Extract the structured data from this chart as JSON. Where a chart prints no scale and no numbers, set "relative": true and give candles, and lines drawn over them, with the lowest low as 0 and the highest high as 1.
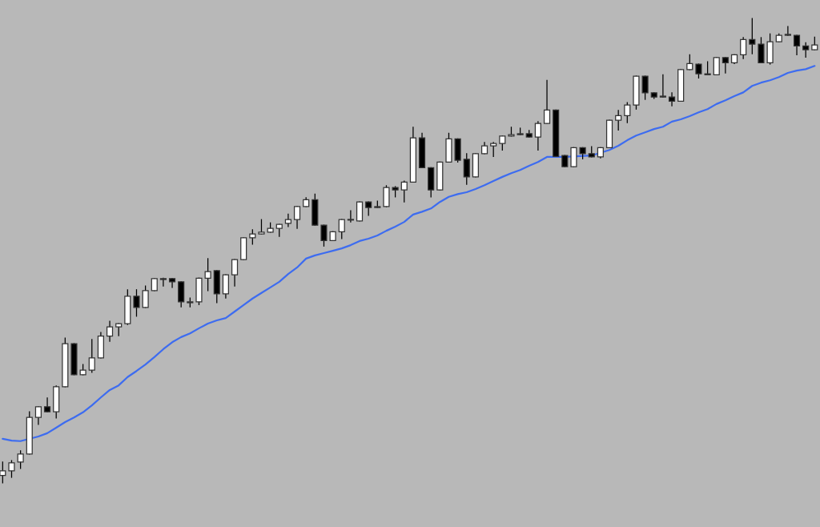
{
  "chart_data": {
    "type": "candlestick",
    "relative": true,
    "categories": [
      null,
      null,
      null,
      null,
      null,
      null,
      null,
      null,
      null,
      null,
      null,
      null,
      null,
      null,
      null,
      null,
      null,
      null,
      null,
      null,
      null,
      null,
      null,
      null,
      null,
      null,
      null,
      null,
      null,
      null,
      null,
      null,
      null,
      null,
      null,
      null,
      null,
      null,
      null,
      null,
      null,
      null,
      null,
      null,
      null,
      null,
      null,
      null,
      null,
      null,
      null,
      null,
      null,
      null,
      null,
      null,
      null,
      null,
      null,
      null,
      null,
      null,
      null,
      null,
      null,
      null,
      null,
      null,
      null,
      null,
      null,
      null,
      null,
      null,
      null,
      null,
      null,
      null,
      null,
      null,
      null,
      null,
      null,
      null,
      null,
      null,
      null,
      null,
      null,
      null,
      null,
      null
    ],
    "series": [
      {
        "type": "line",
        "color": "#3d6cf0",
        "values": [
          0.095,
          0.091,
          0.09,
          null,
          0.1,
          0.107,
          0.119,
          0.131,
          0.141,
          0.152,
          0.167,
          0.184,
          0.2,
          0.21,
          0.228,
          0.241,
          0.255,
          0.271,
          0.288,
          0.303,
          0.314,
          0.322,
          0.333,
          0.343,
          0.35,
          0.355,
          0.369,
          0.383,
          0.397,
          0.409,
          0.421,
          0.433,
          0.45,
          0.464,
          0.483,
          0.49,
          0.495,
          0.5,
          0.505,
          0.512,
          0.521,
          0.526,
          0.533,
          0.543,
          0.552,
          0.562,
          0.578,
          0.584,
          0.591,
          0.605,
          0.616,
          0.622,
          0.626,
          0.633,
          0.641,
          0.65,
          0.659,
          0.667,
          0.674,
          0.683,
          0.691,
          0.702,
          0.702,
          0.702,
          null,
          null,
          0.705,
          null,
          0.717,
          0.726,
          0.738,
          0.748,
          0.755,
          0.762,
          0.767,
          0.778,
          0.783,
          0.79,
          0.798,
          0.805,
          0.816,
          0.824,
          0.833,
          0.841,
          0.855,
          0.862,
          0.867,
          0.874,
          0.883,
          0.888,
          0.891,
          0.898
        ]
      },
      {
        "type": "candlestick",
        "ohlc": [
          [
            0.016,
            0.045,
            0.0,
            0.026
          ],
          [
            0.026,
            0.048,
            0.012,
            0.043
          ],
          [
            0.045,
            0.069,
            0.031,
            0.062
          ],
          [
            0.062,
            0.153,
            0.062,
            0.141
          ],
          [
            0.141,
            0.164,
            0.126,
            0.164
          ],
          [
            0.164,
            0.183,
            0.153,
            0.153
          ],
          [
            0.153,
            0.209,
            0.14,
            0.207
          ],
          [
            0.207,
            0.312,
            0.207,
            0.3
          ],
          [
            0.3,
            0.3,
            0.233,
            0.233
          ],
          [
            0.233,
            0.255,
            0.233,
            0.243
          ],
          [
            0.243,
            0.309,
            0.238,
            0.269
          ],
          [
            0.269,
            0.324,
            0.269,
            0.316
          ],
          [
            0.316,
            0.348,
            0.305,
            0.336
          ],
          [
            0.336,
            0.343,
            0.317,
            0.343
          ],
          [
            0.343,
            0.416,
            0.341,
            0.402
          ],
          [
            0.402,
            0.416,
            0.359,
            0.378
          ],
          [
            0.378,
            0.424,
            0.378,
            0.414
          ],
          [
            0.414,
            0.44,
            0.414,
            0.44
          ],
          [
            0.438,
            0.441,
            0.424,
            0.44
          ],
          [
            0.44,
            0.44,
            0.421,
            0.433
          ],
          [
            0.433,
            0.433,
            0.379,
            0.39
          ],
          [
            0.388,
            0.398,
            0.379,
            0.39
          ],
          [
            0.39,
            0.441,
            0.384,
            0.441
          ],
          [
            0.441,
            0.483,
            0.414,
            0.455
          ],
          [
            0.457,
            0.457,
            0.388,
            0.407
          ],
          [
            0.407,
            0.448,
            0.398,
            0.448
          ],
          [
            0.448,
            0.481,
            0.424,
            0.481
          ],
          [
            0.481,
            0.528,
            0.481,
            0.528
          ],
          [
            0.528,
            0.545,
            0.514,
            0.536
          ],
          [
            0.536,
            0.567,
            0.536,
            0.54
          ],
          [
            0.54,
            0.56,
            0.54,
            0.548
          ],
          [
            0.548,
            0.557,
            0.531,
            0.557
          ],
          [
            0.559,
            0.579,
            0.552,
            0.567
          ],
          [
            0.567,
            0.595,
            0.548,
            0.595
          ],
          [
            0.595,
            0.614,
            0.595,
            0.61
          ],
          [
            0.61,
            0.622,
            0.555,
            0.555
          ],
          [
            0.555,
            0.555,
            0.51,
            0.522
          ],
          [
            0.522,
            0.541,
            0.522,
            0.541
          ],
          [
            0.541,
            0.567,
            0.526,
            0.567
          ],
          [
            0.566,
            0.586,
            0.562,
            0.567
          ],
          [
            0.564,
            0.605,
            0.564,
            0.605
          ],
          [
            0.605,
            0.605,
            0.576,
            0.593
          ],
          [
            0.593,
            0.607,
            0.593,
            0.595
          ],
          [
            0.595,
            0.64,
            0.595,
            0.636
          ],
          [
            0.636,
            0.638,
            0.616,
            0.631
          ],
          [
            0.631,
            0.65,
            0.605,
            0.648
          ],
          [
            0.648,
            0.766,
            0.648,
            0.743
          ],
          [
            0.743,
            0.753,
            0.679,
            0.679
          ],
          [
            0.679,
            0.679,
            0.616,
            0.631
          ],
          [
            0.631,
            0.691,
            0.631,
            0.691
          ],
          [
            0.691,
            0.753,
            0.691,
            0.741
          ],
          [
            0.741,
            0.741,
            0.691,
            0.695
          ],
          [
            0.697,
            0.709,
            0.643,
            0.659
          ],
          [
            0.659,
            0.709,
            0.659,
            0.709
          ],
          [
            0.709,
            0.733,
            0.709,
            0.726
          ],
          [
            0.726,
            0.733,
            0.703,
            0.731
          ],
          [
            0.731,
            0.747,
            0.717,
            0.747
          ],
          [
            0.747,
            0.766,
            0.747,
            0.75
          ],
          [
            0.752,
            0.764,
            0.75,
            0.75
          ],
          [
            0.752,
            0.759,
            0.745,
            0.745
          ],
          [
            0.745,
            0.778,
            0.717,
            0.774
          ],
          [
            0.774,
            0.867,
            0.774,
            0.803
          ],
          [
            0.803,
            0.803,
            0.703,
            0.703
          ],
          [
            0.705,
            0.705,
            0.681,
            0.681
          ],
          [
            0.681,
            0.722,
            0.681,
            0.722
          ],
          [
            0.722,
            0.722,
            0.698,
            0.709
          ],
          [
            0.709,
            0.724,
            0.702,
            0.702
          ],
          [
            0.702,
            0.722,
            0.7,
            0.722
          ],
          [
            0.722,
            0.781,
            0.722,
            0.781
          ],
          [
            0.781,
            0.802,
            0.76,
            0.791
          ],
          [
            0.791,
            0.819,
            0.776,
            0.814
          ],
          [
            0.814,
            0.876,
            0.805,
            0.876
          ],
          [
            0.876,
            0.876,
            0.826,
            0.84
          ],
          [
            0.84,
            0.84,
            0.828,
            0.831
          ],
          [
            0.833,
            0.879,
            0.831,
            0.831
          ],
          [
            0.831,
            0.84,
            0.812,
            0.822
          ],
          [
            0.822,
            0.89,
            0.822,
            0.89
          ],
          [
            0.89,
            0.922,
            0.89,
            0.903
          ],
          [
            0.902,
            0.902,
            0.872,
            0.881
          ],
          [
            0.881,
            0.907,
            0.879,
            0.879
          ],
          [
            0.879,
            0.916,
            0.879,
            0.916
          ],
          [
            0.916,
            0.916,
            0.883,
            0.905
          ],
          [
            0.905,
            0.922,
            0.903,
            0.922
          ],
          [
            0.922,
            0.959,
            0.914,
            0.955
          ],
          [
            0.955,
            1.0,
            0.924,
            0.945
          ],
          [
            0.945,
            0.959,
            0.905,
            0.905
          ],
          [
            0.905,
            0.967,
            0.902,
            0.95
          ],
          [
            0.95,
            0.967,
            0.95,
            0.964
          ],
          [
            0.964,
            0.983,
            0.964,
            0.966
          ],
          [
            0.964,
            0.964,
            0.922,
            0.941
          ],
          [
            0.941,
            0.948,
            0.917,
            0.933
          ],
          [
            0.933,
            0.96,
            0.933,
            0.943
          ]
        ]
      }
    ]
  }
}
